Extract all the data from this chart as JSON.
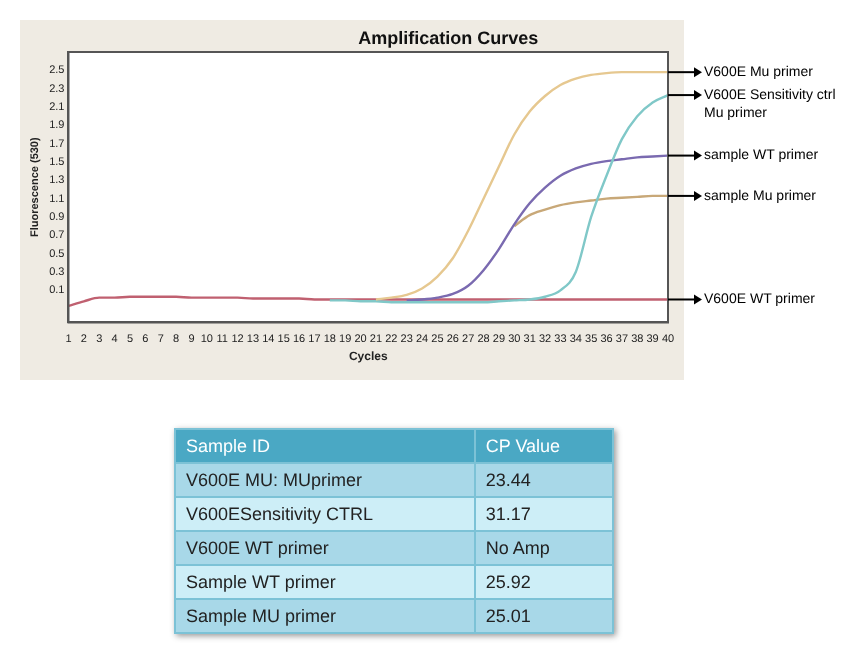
{
  "chart_data": [
    {
      "type": "line",
      "title": "Amplification Curves",
      "xlabel": "Cycles",
      "ylabel": "Fluorescence (530)",
      "x": [
        1,
        2,
        3,
        4,
        5,
        6,
        7,
        8,
        9,
        10,
        11,
        12,
        13,
        14,
        15,
        16,
        17,
        18,
        19,
        20,
        21,
        22,
        23,
        24,
        25,
        26,
        27,
        28,
        29,
        30,
        31,
        32,
        33,
        34,
        35,
        36,
        37,
        38,
        39,
        40
      ],
      "xlim": [
        1,
        40
      ],
      "xticks": [
        1,
        2,
        3,
        4,
        5,
        6,
        7,
        8,
        9,
        10,
        11,
        12,
        13,
        14,
        15,
        16,
        17,
        18,
        19,
        20,
        21,
        22,
        23,
        24,
        25,
        26,
        27,
        28,
        29,
        30,
        31,
        32,
        33,
        34,
        35,
        36,
        37,
        38,
        39,
        40
      ],
      "ylim": [
        -0.25,
        2.7
      ],
      "yticks": [
        0.1,
        0.3,
        0.5,
        0.7,
        0.9,
        1.1,
        1.3,
        1.5,
        1.7,
        1.9,
        2.1,
        2.3,
        2.5
      ],
      "grid": false,
      "legend": false,
      "marker": "none",
      "line_style": "solid",
      "series": [
        {
          "name": "V600E Mu primer",
          "color": "#e6c890",
          "values": [
            null,
            null,
            null,
            null,
            null,
            null,
            null,
            null,
            null,
            null,
            null,
            null,
            null,
            null,
            null,
            null,
            null,
            null,
            null,
            null,
            0,
            0.02,
            0.05,
            0.12,
            0.25,
            0.45,
            0.75,
            1.1,
            1.45,
            1.8,
            2.05,
            2.22,
            2.34,
            2.41,
            2.45,
            2.47,
            2.48,
            2.48,
            2.48,
            2.48
          ]
        },
        {
          "name": "V600E Sensitivity ctrl Mu primer",
          "color": "#80c8c8",
          "values": [
            null,
            null,
            null,
            null,
            null,
            null,
            null,
            null,
            null,
            null,
            null,
            null,
            null,
            null,
            null,
            null,
            null,
            -0.01,
            -0.01,
            -0.02,
            -0.02,
            -0.03,
            -0.03,
            -0.03,
            -0.03,
            -0.03,
            -0.03,
            -0.03,
            -0.02,
            -0.01,
            0,
            0.03,
            0.1,
            0.3,
            0.9,
            1.35,
            1.75,
            2.0,
            2.15,
            2.23
          ]
        },
        {
          "name": "sample WT primer",
          "color": "#7a6ab0",
          "values": [
            null,
            null,
            null,
            null,
            null,
            null,
            null,
            null,
            null,
            null,
            null,
            null,
            null,
            null,
            null,
            null,
            null,
            null,
            null,
            null,
            null,
            null,
            -0.01,
            0,
            0.02,
            0.06,
            0.15,
            0.32,
            0.55,
            0.82,
            1.05,
            1.22,
            1.35,
            1.43,
            1.48,
            1.51,
            1.53,
            1.55,
            1.56,
            1.57
          ]
        },
        {
          "name": "sample Mu primer",
          "color": "#c8a878",
          "values": [
            null,
            null,
            null,
            null,
            null,
            null,
            null,
            null,
            null,
            null,
            null,
            null,
            null,
            null,
            null,
            null,
            null,
            null,
            null,
            null,
            null,
            null,
            null,
            null,
            null,
            null,
            null,
            null,
            null,
            0.8,
            0.92,
            0.98,
            1.03,
            1.06,
            1.08,
            1.1,
            1.11,
            1.12,
            1.13,
            1.13
          ]
        },
        {
          "name": "V600E WT primer",
          "color": "#c06070",
          "values": [
            -0.07,
            -0.02,
            0.02,
            0.02,
            0.03,
            0.03,
            0.03,
            0.03,
            0.02,
            0.02,
            0.02,
            0.02,
            0.01,
            0.01,
            0.01,
            0.01,
            0,
            0,
            0,
            0,
            0,
            0,
            0,
            0,
            0,
            0,
            0,
            0,
            0,
            0,
            0,
            0,
            0,
            0,
            0,
            0,
            0,
            0,
            0,
            0
          ]
        }
      ]
    },
    {
      "type": "other",
      "annotations": [
        "Sample ID",
        "CP Value",
        "V600E MU: MUprimer",
        "23.44",
        "V600ESensitivity CTRL",
        "31.17",
        "V600E WT primer",
        "No Amp",
        "Sample WT primer",
        "25.92",
        "Sample MU primer",
        "25.01"
      ]
    }
  ]
}
